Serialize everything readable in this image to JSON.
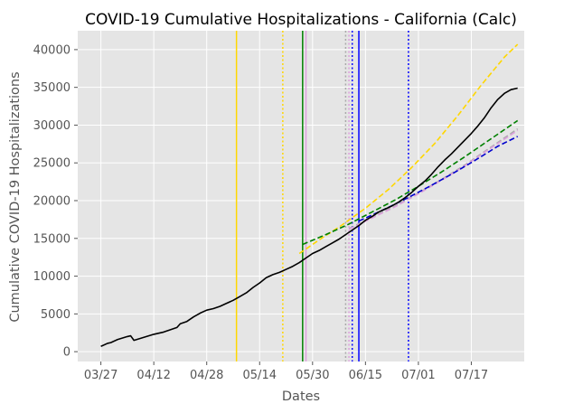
{
  "chart_data": {
    "type": "line",
    "title": "COVID-19 Cumulative Hospitalizations - California (Calc)",
    "xlabel": "Dates",
    "ylabel": "Cumulative COVID-19 Hospitalizations",
    "x_tick_labels": [
      "03/27",
      "04/12",
      "04/28",
      "05/14",
      "05/30",
      "06/15",
      "07/01",
      "07/17"
    ],
    "x_tick_dates": [
      "2020-03-27",
      "2020-04-12",
      "2020-04-28",
      "2020-05-14",
      "2020-05-30",
      "2020-06-15",
      "2020-07-01",
      "2020-07-17"
    ],
    "y_ticks": [
      0,
      5000,
      10000,
      15000,
      20000,
      25000,
      30000,
      35000,
      40000
    ],
    "xlim": [
      "2020-03-20",
      "2020-08-02"
    ],
    "ylim": [
      -1300,
      42500
    ],
    "grid": true,
    "style": "ggplot",
    "series": [
      {
        "color": "#000000",
        "dash": "solid",
        "points": [
          [
            "2020-03-27",
            700
          ],
          [
            "2020-03-29",
            1100
          ],
          [
            "2020-03-30",
            1200
          ],
          [
            "2020-04-01",
            1600
          ],
          [
            "2020-04-04",
            2000
          ],
          [
            "2020-04-05",
            2100
          ],
          [
            "2020-04-06",
            1500
          ],
          [
            "2020-04-09",
            1900
          ],
          [
            "2020-04-12",
            2300
          ],
          [
            "2020-04-15",
            2600
          ],
          [
            "2020-04-17",
            2900
          ],
          [
            "2020-04-19",
            3200
          ],
          [
            "2020-04-20",
            3700
          ],
          [
            "2020-04-22",
            4000
          ],
          [
            "2020-04-24",
            4600
          ],
          [
            "2020-04-26",
            5100
          ],
          [
            "2020-04-28",
            5500
          ],
          [
            "2020-04-30",
            5700
          ],
          [
            "2020-05-02",
            6000
          ],
          [
            "2020-05-04",
            6400
          ],
          [
            "2020-05-06",
            6800
          ],
          [
            "2020-05-08",
            7300
          ],
          [
            "2020-05-10",
            7800
          ],
          [
            "2020-05-12",
            8500
          ],
          [
            "2020-05-14",
            9100
          ],
          [
            "2020-05-16",
            9800
          ],
          [
            "2020-05-18",
            10200
          ],
          [
            "2020-05-20",
            10500
          ],
          [
            "2020-05-22",
            10900
          ],
          [
            "2020-05-24",
            11300
          ],
          [
            "2020-05-26",
            11800
          ],
          [
            "2020-05-28",
            12400
          ],
          [
            "2020-05-30",
            13000
          ],
          [
            "2020-06-01",
            13400
          ],
          [
            "2020-06-03",
            13900
          ],
          [
            "2020-06-05",
            14400
          ],
          [
            "2020-06-07",
            14900
          ],
          [
            "2020-06-09",
            15500
          ],
          [
            "2020-06-11",
            16100
          ],
          [
            "2020-06-13",
            16700
          ],
          [
            "2020-06-15",
            17400
          ],
          [
            "2020-06-17",
            17900
          ],
          [
            "2020-06-19",
            18500
          ],
          [
            "2020-06-21",
            18900
          ],
          [
            "2020-06-23",
            19300
          ],
          [
            "2020-06-25",
            19800
          ],
          [
            "2020-06-27",
            20400
          ],
          [
            "2020-06-29",
            21100
          ],
          [
            "2020-07-01",
            21900
          ],
          [
            "2020-07-03",
            22600
          ],
          [
            "2020-07-05",
            23500
          ],
          [
            "2020-07-07",
            24500
          ],
          [
            "2020-07-09",
            25400
          ],
          [
            "2020-07-11",
            26200
          ],
          [
            "2020-07-13",
            27100
          ],
          [
            "2020-07-15",
            28000
          ],
          [
            "2020-07-17",
            28900
          ],
          [
            "2020-07-19",
            29900
          ],
          [
            "2020-07-21",
            31000
          ],
          [
            "2020-07-23",
            32300
          ],
          [
            "2020-07-25",
            33400
          ],
          [
            "2020-07-27",
            34200
          ],
          [
            "2020-07-29",
            34700
          ],
          [
            "2020-07-31",
            34900
          ]
        ]
      },
      {
        "color": "#ffd700",
        "dash": "dashed",
        "points": [
          [
            "2020-05-26",
            13000
          ],
          [
            "2020-06-01",
            14800
          ],
          [
            "2020-06-08",
            16800
          ],
          [
            "2020-06-15",
            19000
          ],
          [
            "2020-06-22",
            21500
          ],
          [
            "2020-06-29",
            24400
          ],
          [
            "2020-07-06",
            27600
          ],
          [
            "2020-07-13",
            31300
          ],
          [
            "2020-07-20",
            35300
          ],
          [
            "2020-07-27",
            39000
          ],
          [
            "2020-07-31",
            40700
          ]
        ]
      },
      {
        "color": "#008000",
        "dash": "dashed",
        "points": [
          [
            "2020-05-27",
            14200
          ],
          [
            "2020-06-03",
            15500
          ],
          [
            "2020-06-10",
            16900
          ],
          [
            "2020-06-17",
            18500
          ],
          [
            "2020-06-24",
            20100
          ],
          [
            "2020-07-01",
            21900
          ],
          [
            "2020-07-08",
            23800
          ],
          [
            "2020-07-15",
            25800
          ],
          [
            "2020-07-22",
            27900
          ],
          [
            "2020-07-31",
            30600
          ]
        ]
      },
      {
        "color": "#a9a9a9",
        "dash": "dashed",
        "points": [
          [
            "2020-06-10",
            16300
          ],
          [
            "2020-06-17",
            17800
          ],
          [
            "2020-06-24",
            19300
          ],
          [
            "2020-07-01",
            21000
          ],
          [
            "2020-07-08",
            22800
          ],
          [
            "2020-07-15",
            24700
          ],
          [
            "2020-07-22",
            26800
          ],
          [
            "2020-07-31",
            29500
          ]
        ]
      },
      {
        "color": "#dda0dd",
        "dash": "dashed",
        "points": [
          [
            "2020-06-10",
            16200
          ],
          [
            "2020-06-17",
            17700
          ],
          [
            "2020-06-24",
            19200
          ],
          [
            "2020-07-01",
            20900
          ],
          [
            "2020-07-08",
            22700
          ],
          [
            "2020-07-15",
            24600
          ],
          [
            "2020-07-22",
            26700
          ],
          [
            "2020-07-31",
            29300
          ]
        ]
      },
      {
        "color": "#0000cd",
        "dash": "dashed",
        "points": [
          [
            "2020-06-13",
            17300
          ],
          [
            "2020-06-20",
            18700
          ],
          [
            "2020-06-27",
            20200
          ],
          [
            "2020-07-04",
            21800
          ],
          [
            "2020-07-11",
            23500
          ],
          [
            "2020-07-18",
            25300
          ],
          [
            "2020-07-25",
            27200
          ],
          [
            "2020-07-31",
            28500
          ]
        ]
      }
    ],
    "vertical_lines": [
      {
        "x": "2020-05-07",
        "color": "#ffd700",
        "style": "solid"
      },
      {
        "x": "2020-05-21",
        "color": "#ffd700",
        "style": "dotted"
      },
      {
        "x": "2020-05-27",
        "color": "#008000",
        "style": "solid"
      },
      {
        "x": "2020-05-28",
        "color": "#dda0dd",
        "style": "solid"
      },
      {
        "x": "2020-06-09",
        "color": "#a9a9a9",
        "style": "dotted"
      },
      {
        "x": "2020-06-10",
        "color": "#dda0dd",
        "style": "dotted"
      },
      {
        "x": "2020-06-11",
        "color": "#0000ff",
        "style": "dotted"
      },
      {
        "x": "2020-06-13",
        "color": "#0000ff",
        "style": "solid"
      },
      {
        "x": "2020-06-28",
        "color": "#0000ff",
        "style": "dotted"
      }
    ]
  }
}
